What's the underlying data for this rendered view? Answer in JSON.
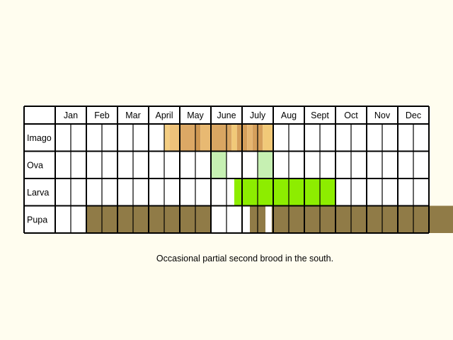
{
  "chart_data": {
    "type": "table",
    "months": [
      "Jan",
      "Feb",
      "Mar",
      "April",
      "May",
      "June",
      "July",
      "Aug",
      "Sept",
      "Oct",
      "Nov",
      "Dec"
    ],
    "stages": [
      {
        "label": "Imago",
        "segments": [
          {
            "from": 7.0,
            "to": 7.33,
            "color": "#f4ce82"
          },
          {
            "from": 7.33,
            "to": 8.0,
            "color": "#eec27a"
          },
          {
            "from": 8.0,
            "to": 9.0,
            "color": "#dca865"
          },
          {
            "from": 9.0,
            "to": 9.33,
            "color": "#cf9852"
          },
          {
            "from": 9.33,
            "to": 10.0,
            "color": "#e8b972"
          },
          {
            "from": 10.0,
            "to": 11.33,
            "color": "#d9a662"
          },
          {
            "from": 11.33,
            "to": 11.67,
            "color": "#f1c978"
          },
          {
            "from": 11.67,
            "to": 12.33,
            "color": "#d59f5b"
          },
          {
            "from": 12.33,
            "to": 12.67,
            "color": "#e7b670"
          },
          {
            "from": 12.67,
            "to": 13.33,
            "color": "#d59f5b"
          },
          {
            "from": 13.33,
            "to": 14.0,
            "color": "#f1c978"
          }
        ]
      },
      {
        "label": "Ova",
        "segments": [
          {
            "from": 10.0,
            "to": 11.0,
            "color": "#c6f0b2"
          },
          {
            "from": 13.0,
            "to": 14.0,
            "color": "#c6f0b2"
          }
        ]
      },
      {
        "label": "Larva",
        "segments": [
          {
            "from": 11.5,
            "to": 18.0,
            "color": "#8ded00"
          }
        ]
      },
      {
        "label": "Pupa",
        "segments": [
          {
            "from": 2.0,
            "to": 10.0,
            "color": "#907b47"
          },
          {
            "from": 12.5,
            "to": 13.5,
            "color": "#907b47"
          },
          {
            "from": 13.9,
            "to": 26.0,
            "color": "#907b47"
          }
        ]
      }
    ]
  },
  "note": "Occasional partial second brood in the south."
}
